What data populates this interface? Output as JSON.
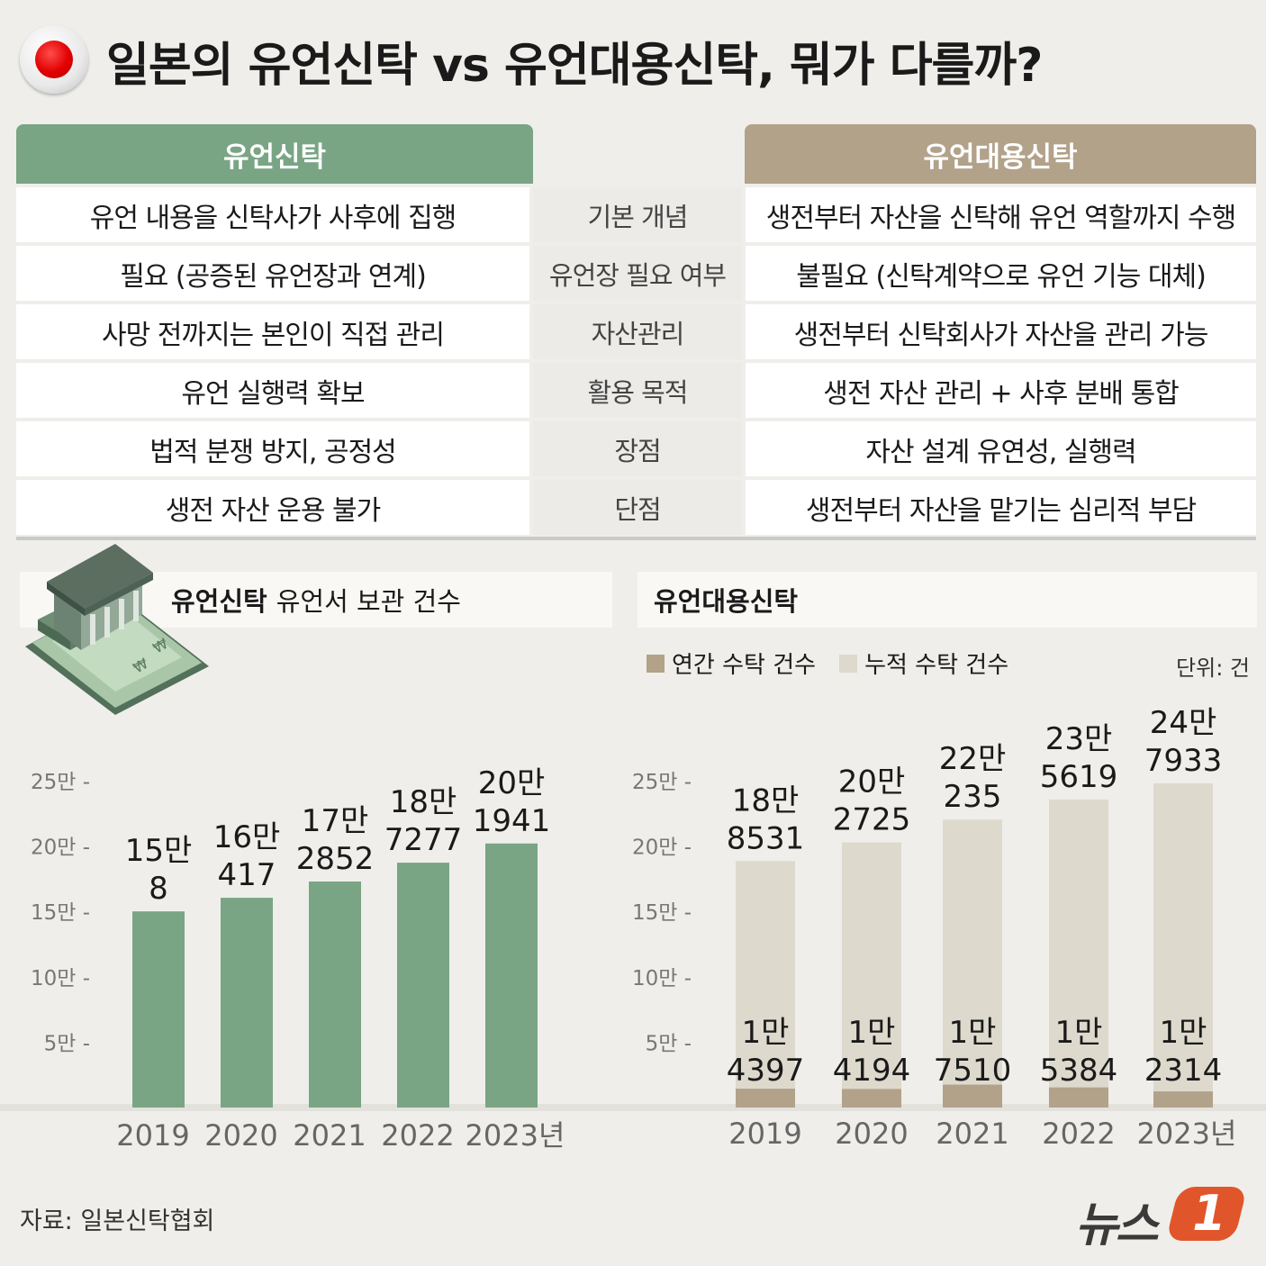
{
  "title": "일본의 유언신탁 vs 유언대용신탁, 뭐가 다를까?",
  "table": {
    "left_header": "유언신탁",
    "right_header": "유언대용신탁",
    "rows": [
      {
        "category": "기본 개념",
        "left": "유언 내용을 신탁사가 사후에 집행",
        "right": "생전부터 자산을 신탁해 유언 역할까지 수행"
      },
      {
        "category": "유언장 필요 여부",
        "left": "필요 (공증된 유언장과 연계)",
        "right": "불필요 (신탁계약으로 유언 기능 대체)"
      },
      {
        "category": "자산관리",
        "left": "사망 전까지는 본인이 직접 관리",
        "right": "생전부터 신탁회사가 자산을 관리 가능"
      },
      {
        "category": "활용 목적",
        "left": "유언 실행력 확보",
        "right": "생전 자산 관리 + 사후 분배 통합"
      },
      {
        "category": "장점",
        "left": "법적 분쟁 방지, 공정성",
        "right": "자산 설계 유연성, 실행력"
      },
      {
        "category": "단점",
        "left": "생전 자산 운용 불가",
        "right": "생전부터 자산을 맡기는 심리적 부담"
      }
    ]
  },
  "left_panel": {
    "title_bold": "유언신탁",
    "title_rest": "유언서 보관 건수"
  },
  "right_panel": {
    "title_bold": "유언대용신탁"
  },
  "legend": {
    "annual": "연간 수탁 건수",
    "cumulative": "누적 수탁 건수"
  },
  "unit": "단위: 건",
  "colors": {
    "green": "#79a585",
    "annual": "#b2a28a",
    "cumulative": "#ddd9cd",
    "axis_text": "#777777"
  },
  "chart_data": [
    {
      "type": "bar",
      "title": "유언신탁 유언서 보관 건수",
      "categories": [
        "2019",
        "2020",
        "2021",
        "2022",
        "2023년"
      ],
      "values": [
        150008,
        160417,
        172852,
        187277,
        201941
      ],
      "labels": [
        [
          "15만",
          "8"
        ],
        [
          "16만",
          "417"
        ],
        [
          "17만",
          "2852"
        ],
        [
          "18만",
          "7277"
        ],
        [
          "20만",
          "1941"
        ]
      ],
      "ytick_labels": [
        "5만",
        "10만",
        "15만",
        "20만",
        "25만"
      ],
      "ytick_values": [
        50000,
        100000,
        150000,
        200000,
        250000
      ],
      "ylim": [
        0,
        250000
      ],
      "unit": "건"
    },
    {
      "type": "bar",
      "title": "유언대용신탁",
      "categories": [
        "2019",
        "2020",
        "2021",
        "2022",
        "2023년"
      ],
      "series": [
        {
          "name": "연간 수탁 건수",
          "values": [
            14397,
            14194,
            17510,
            15384,
            12314
          ],
          "labels": [
            [
              "1만",
              "4397"
            ],
            [
              "1만",
              "4194"
            ],
            [
              "1만",
              "7510"
            ],
            [
              "1만",
              "5384"
            ],
            [
              "1만",
              "2314"
            ]
          ]
        },
        {
          "name": "누적 수탁 건수",
          "values": [
            188531,
            202725,
            220235,
            235619,
            247933
          ],
          "labels": [
            [
              "18만",
              "8531"
            ],
            [
              "20만",
              "2725"
            ],
            [
              "22만",
              "235"
            ],
            [
              "23만",
              "5619"
            ],
            [
              "24만",
              "7933"
            ]
          ]
        }
      ],
      "ytick_labels": [
        "5만",
        "10만",
        "15만",
        "20만",
        "25만"
      ],
      "ytick_values": [
        50000,
        100000,
        150000,
        200000,
        250000
      ],
      "ylim": [
        0,
        250000
      ],
      "unit": "건"
    }
  ],
  "source": "자료: 일본신탁협회",
  "logo": {
    "text": "뉴스",
    "badge": "1"
  }
}
